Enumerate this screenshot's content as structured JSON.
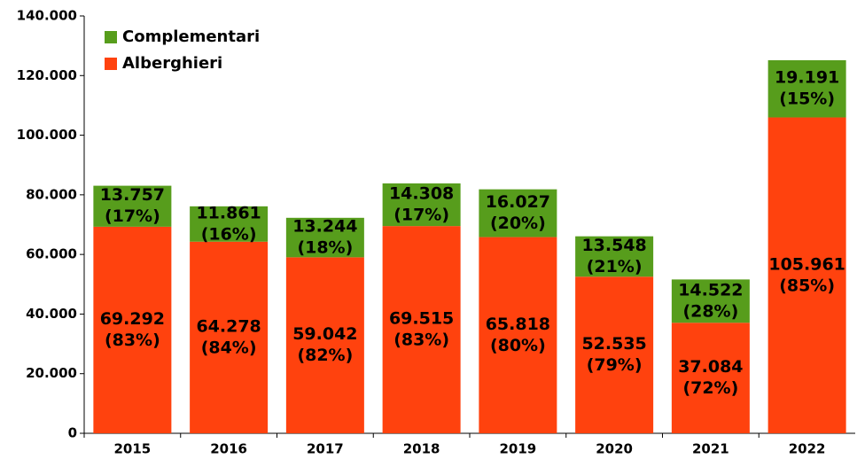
{
  "chart_data": {
    "type": "stacked_bar",
    "categories": [
      "2015",
      "2016",
      "2017",
      "2018",
      "2019",
      "2020",
      "2021",
      "2022"
    ],
    "series": [
      {
        "name": "Alberghieri",
        "color": "#ff420e",
        "values": [
          69292,
          64278,
          59042,
          69515,
          65818,
          52535,
          37084,
          105961
        ],
        "value_labels": [
          "69.292",
          "64.278",
          "59.042",
          "69.515",
          "65.818",
          "52.535",
          "37.084",
          "105.961"
        ],
        "share_labels": [
          "(83%)",
          "(84%)",
          "(82%)",
          "(83%)",
          "(80%)",
          "(79%)",
          "(72%)",
          "(85%)"
        ]
      },
      {
        "name": "Complementari",
        "color": "#579d1c",
        "values": [
          13757,
          11861,
          13244,
          14308,
          16027,
          13548,
          14522,
          19191
        ],
        "value_labels": [
          "13.757",
          "11.861",
          "13.244",
          "14.308",
          "16.027",
          "13.548",
          "14.522",
          "19.191"
        ],
        "share_labels": [
          "(17%)",
          "(16%)",
          "(18%)",
          "(17%)",
          "(20%)",
          "(21%)",
          "(28%)",
          "(15%)"
        ]
      }
    ],
    "ylim": [
      0,
      140000
    ],
    "yticks": [
      0,
      {
        "value": 20000,
        "label": "20.000"
      },
      {
        "value": 40000,
        "label": "40.000"
      },
      {
        "value": 60000,
        "label": "60.000"
      },
      {
        "value": 80000,
        "label": "80.000"
      },
      {
        "value": 100000,
        "label": "100.000"
      },
      {
        "value": 120000,
        "label": "120.000"
      },
      {
        "value": 140000,
        "label": "140.000"
      }
    ],
    "legend": "top-left",
    "grid": false
  }
}
